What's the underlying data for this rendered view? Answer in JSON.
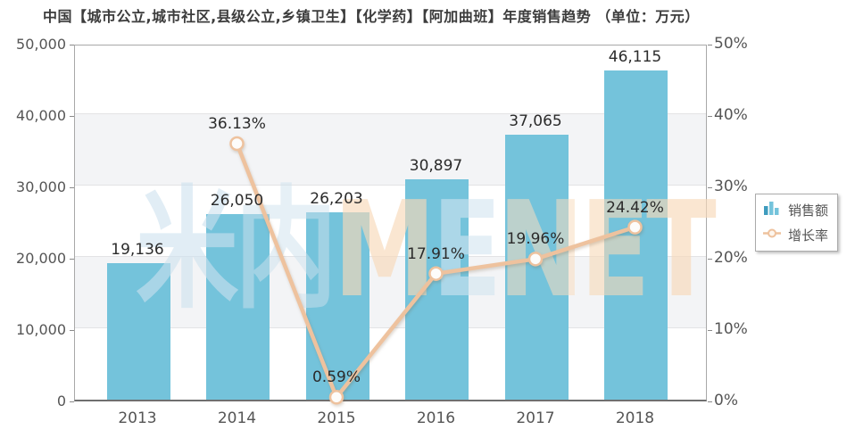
{
  "title": "中国【城市公立,城市社区,县级公立,乡镇卫生】【化学药】【阿加曲班】年度销售趋势 （单位：万元）",
  "legend": {
    "items": [
      {
        "label": "销售额",
        "icon": "bar-chart-icon"
      },
      {
        "label": "增长率",
        "icon": "line-marker-icon"
      }
    ]
  },
  "watermark": {
    "letters": [
      "米",
      "内",
      "M",
      "E",
      "N",
      "E",
      "T"
    ],
    "letter_colors": [
      "rgba(205,225,238,0.60)",
      "rgba(205,225,238,0.50)",
      "rgba(247,216,184,0.65)",
      "rgba(210,228,240,0.60)",
      "rgba(247,220,192,0.55)",
      "rgba(247,216,184,0.60)",
      "rgba(247,216,184,0.65)"
    ]
  },
  "chart_data": {
    "type": "bar+line",
    "categories": [
      "2013",
      "2014",
      "2015",
      "2016",
      "2017",
      "2018"
    ],
    "series": [
      {
        "name": "销售额",
        "type": "bar",
        "axis": "left",
        "values": [
          19136,
          26050,
          26203,
          30897,
          37065,
          46115
        ],
        "labels": [
          "19,136",
          "26,050",
          "26,203",
          "30,897",
          "37,065",
          "46,115"
        ]
      },
      {
        "name": "增长率",
        "type": "line",
        "axis": "right",
        "values": [
          null,
          36.13,
          0.59,
          17.91,
          19.96,
          24.42
        ],
        "labels": [
          null,
          "36.13%",
          "0.59%",
          "17.91%",
          "19.96%",
          "24.42%"
        ]
      }
    ],
    "left_axis": {
      "min": 0,
      "max": 50000,
      "step": 10000,
      "ticks": [
        "0",
        "10,000",
        "20,000",
        "30,000",
        "40,000",
        "50,000"
      ]
    },
    "right_axis": {
      "min": 0,
      "max": 50,
      "step": 10,
      "ticks": [
        "0%",
        "10%",
        "20%",
        "30%",
        "40%",
        "50%"
      ]
    },
    "grid": true,
    "legend_position": "right"
  },
  "colors": {
    "bar": "#74c3db",
    "line": "#eec29e",
    "point_fill": "#fdfcfa",
    "band": "#f3f4f6",
    "gridline": "#e3e3e5",
    "axis_text": "#555555",
    "value_text": "#2b2b2b",
    "title_text": "#3c3c3c",
    "legend_bar_icon_dark": "#3f9cbe",
    "legend_bar_icon_light": "#74c3db"
  }
}
